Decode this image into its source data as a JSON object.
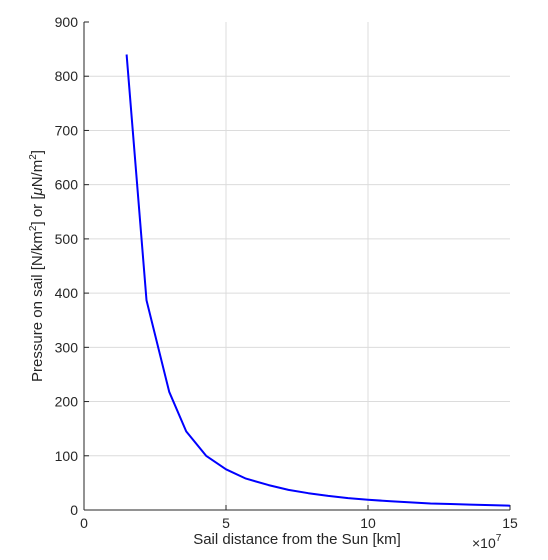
{
  "chart_data": {
    "type": "line",
    "title": "",
    "xlabel": "Sail distance from the Sun [km]",
    "ylabel": {
      "part1": "Pressure on sail [N/km",
      "sup1": "2",
      "part2": "] or [",
      "mu": "μ",
      "part3": "N/m",
      "sup2": "2",
      "part4": "]"
    },
    "xlim": [
      0,
      15
    ],
    "ylim": [
      0,
      900
    ],
    "x_multiplier": {
      "base": "×10",
      "exponent": "7"
    },
    "xticks": [
      0,
      5,
      10,
      15
    ],
    "yticks": [
      0,
      100,
      200,
      300,
      400,
      500,
      600,
      700,
      800,
      900
    ],
    "grid": true,
    "series": [
      {
        "color": "#0000ff",
        "x": [
          1.5,
          2.2,
          3.0,
          3.6,
          4.3,
          5.0,
          5.7,
          6.5,
          7.2,
          7.9,
          8.6,
          9.3,
          10.0,
          10.8,
          11.5,
          12.2,
          12.9,
          13.6,
          14.3,
          15.0
        ],
        "y": [
          840,
          387,
          218,
          145,
          100,
          75,
          58,
          46,
          37,
          31,
          26,
          22,
          19,
          16,
          14,
          12,
          11,
          10,
          9,
          8
        ]
      }
    ]
  }
}
